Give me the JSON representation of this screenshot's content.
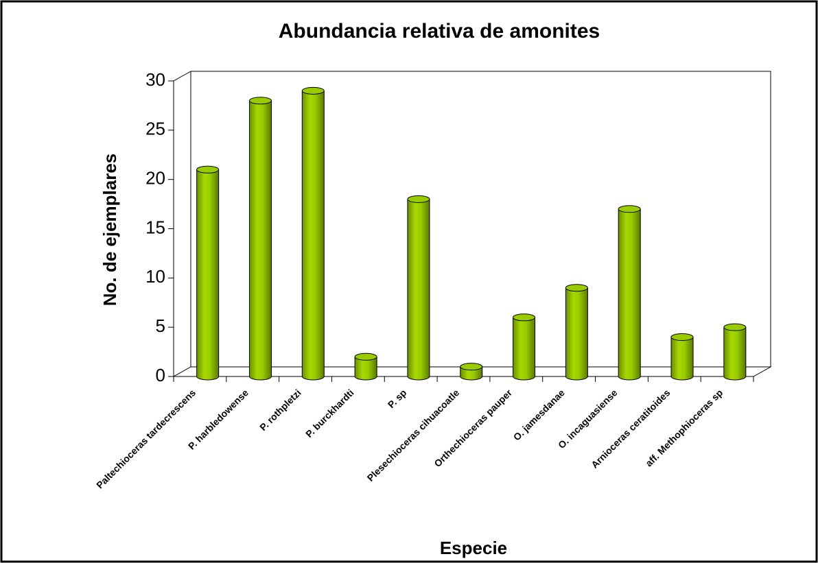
{
  "chart_data": {
    "type": "bar",
    "title": "Abundancia relativa de amonites",
    "x_label": "Especie",
    "y_label": "No. de ejemplares",
    "categories": [
      "Paltechioceras tardecrescens",
      "P. harbledowense",
      "P. rothpletzi",
      "P. burckhardti",
      "P. sp",
      "Plesechioceras cihuacoatle",
      "Orthechioceras pauper",
      "O. jamesdanae",
      "O. incaguasiense",
      "Arnioceras ceratitoides",
      "aff. Methophioceras sp"
    ],
    "values": [
      21,
      28,
      29,
      2,
      18,
      1,
      6,
      9,
      17,
      4,
      5
    ],
    "color": "#99cc00",
    "ylim": [
      0,
      30
    ],
    "yticks": [
      0,
      5,
      10,
      15,
      20,
      25,
      30
    ]
  }
}
